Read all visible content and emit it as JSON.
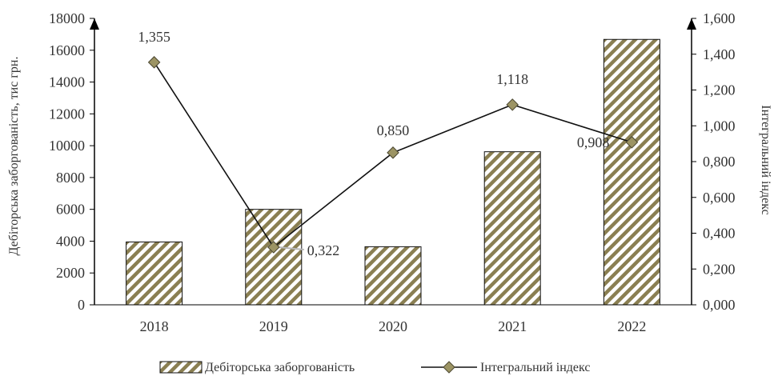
{
  "chart_data": {
    "type": "bar",
    "categories": [
      "2018",
      "2019",
      "2020",
      "2021",
      "2022"
    ],
    "series": [
      {
        "name": "Дебіторська заборгованість",
        "type": "bar",
        "axis": "left",
        "values": [
          3950,
          6000,
          3650,
          9620,
          16680
        ]
      },
      {
        "name": "Інтегральний індекс",
        "type": "line",
        "axis": "right",
        "values": [
          1.355,
          0.322,
          0.85,
          1.118,
          0.908
        ],
        "data_labels": [
          "1,355",
          "0,322",
          "0,850",
          "1,118",
          "0,908"
        ]
      }
    ],
    "ylabel": "Дебіторська заборгованість, тис грн.",
    "y2label": "Інтегральний індекс",
    "ylim": [
      0,
      18000
    ],
    "y2lim": [
      0,
      1.6
    ],
    "yticks": [
      "0",
      "2000",
      "4000",
      "6000",
      "8000",
      "10000",
      "12000",
      "14000",
      "16000",
      "18000"
    ],
    "y2ticks": [
      "0,000",
      "0,200",
      "0,400",
      "0,600",
      "0,800",
      "1,000",
      "1,200",
      "1,400",
      "1,600"
    ],
    "grid": false,
    "legend_position": "bottom",
    "colors": {
      "bar_stripe": "#8a7f52",
      "bar_border": "#111111",
      "line": "#111111",
      "marker_fill": "#9c9464",
      "marker_stroke": "#4a4630",
      "axis": "#000000",
      "text": "#333333"
    }
  }
}
